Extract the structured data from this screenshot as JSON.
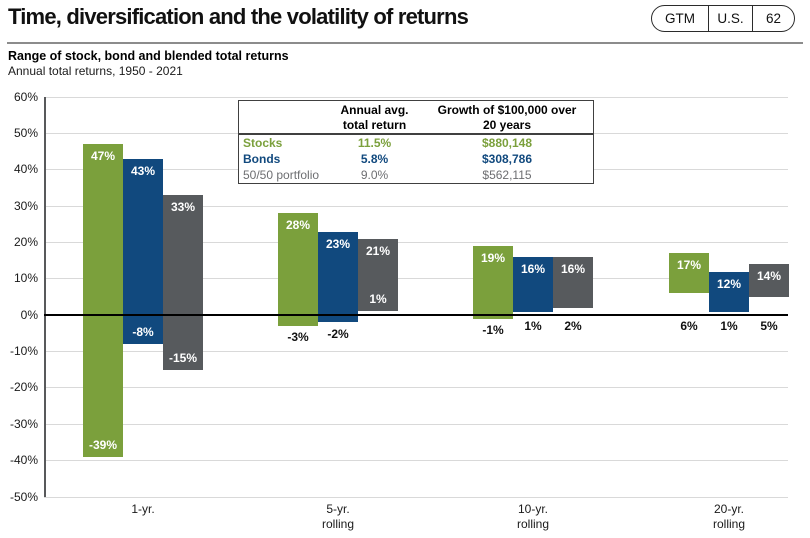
{
  "header": {
    "title": "Time, diversification and the volatility of returns",
    "badge": [
      "GTM",
      "U.S.",
      "62"
    ]
  },
  "chart_heading": {
    "title": "Range of stock, bond and blended total returns",
    "subtitle": "Annual total returns, 1950 - 2021"
  },
  "chart_data": {
    "type": "bar",
    "variant": "floating-range-bars",
    "title": "Range of stock, bond and blended total returns",
    "subtitle": "Annual total returns, 1950 - 2021",
    "categories": [
      "1-yr.",
      "5-yr. rolling",
      "10-yr. rolling",
      "20-yr. rolling"
    ],
    "category_label_lines": [
      [
        "1-yr."
      ],
      [
        "5-yr.",
        "rolling"
      ],
      [
        "10-yr.",
        "rolling"
      ],
      [
        "20-yr.",
        "rolling"
      ]
    ],
    "ylim": [
      -50,
      60
    ],
    "ytick_step": 10,
    "ytick_format": "percent",
    "grid": "horizontal",
    "zero_baseline": true,
    "series": [
      {
        "name": "Stocks",
        "color": "#7ba03c",
        "ranges": [
          {
            "category": "1-yr.",
            "max": 47,
            "min": -39,
            "min_label_inside": true
          },
          {
            "category": "5-yr. rolling",
            "max": 28,
            "min": -3,
            "min_label_inside": false
          },
          {
            "category": "10-yr. rolling",
            "max": 19,
            "min": -1,
            "min_label_inside": false
          },
          {
            "category": "20-yr. rolling",
            "max": 17,
            "min": 6,
            "min_label_inside": false
          }
        ]
      },
      {
        "name": "Bonds",
        "color": "#11497e",
        "ranges": [
          {
            "category": "1-yr.",
            "max": 43,
            "min": -8,
            "min_label_inside": true
          },
          {
            "category": "5-yr. rolling",
            "max": 23,
            "min": -2,
            "min_label_inside": false
          },
          {
            "category": "10-yr. rolling",
            "max": 16,
            "min": 1,
            "min_label_inside": false
          },
          {
            "category": "20-yr. rolling",
            "max": 12,
            "min": 1,
            "min_label_inside": false
          }
        ]
      },
      {
        "name": "50/50 portfolio",
        "color": "#575a5d",
        "ranges": [
          {
            "category": "1-yr.",
            "max": 33,
            "min": -15,
            "min_label_inside": true
          },
          {
            "category": "5-yr. rolling",
            "max": 21,
            "min": 1,
            "min_label_inside": true
          },
          {
            "category": "10-yr. rolling",
            "max": 16,
            "min": 2,
            "min_label_inside": false
          },
          {
            "category": "20-yr. rolling",
            "max": 14,
            "min": 5,
            "min_label_inside": false
          }
        ]
      }
    ],
    "legend_table": {
      "col_headers": [
        [
          "Annual avg.",
          "total return"
        ],
        [
          "Growth of $100,000 over",
          "20 years"
        ]
      ],
      "rows": [
        {
          "label": "Stocks",
          "annual_avg": "11.5%",
          "growth": "$880,148",
          "color": "#7ba03c",
          "bold": true
        },
        {
          "label": "Bonds",
          "annual_avg": "5.8%",
          "growth": "$308,786",
          "color": "#11497e",
          "bold": true
        },
        {
          "label": "50/50 portfolio",
          "annual_avg": "9.0%",
          "growth": "$562,115",
          "color": "#6d6e71",
          "bold": false
        }
      ]
    },
    "colors": {
      "stocks": "#7ba03c",
      "bonds": "#11497e",
      "blend": "#575a5d",
      "gridline": "#d9d9d9",
      "zero_line": "#000000"
    }
  }
}
